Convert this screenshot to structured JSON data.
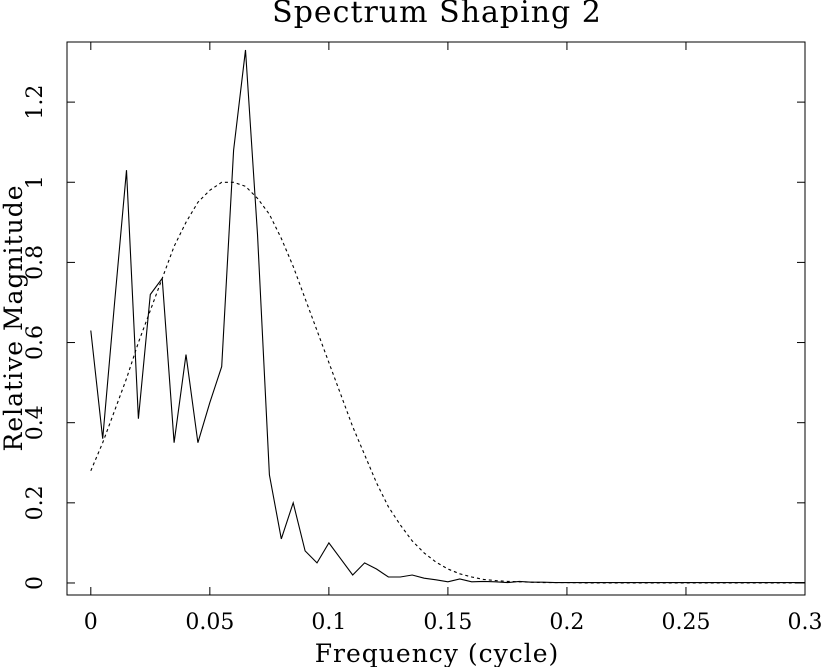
{
  "chart_data": {
    "type": "line",
    "title": "Spectrum Shaping 2",
    "xlabel": "Frequency (cycle)",
    "ylabel": "Relative Magnitude",
    "xlim": [
      -0.01,
      0.3
    ],
    "ylim": [
      -0.03,
      1.35
    ],
    "x_ticks": [
      0,
      0.05,
      0.1,
      0.15,
      0.2,
      0.25,
      0.3
    ],
    "x_tick_labels": [
      "0",
      "0.05",
      "0.1",
      "0.15",
      "0.2",
      "0.25",
      "0.3"
    ],
    "y_ticks": [
      0,
      0.2,
      0.4,
      0.6,
      0.8,
      1,
      1.2
    ],
    "y_tick_labels": [
      "0",
      "0.2",
      "0.4",
      "0.6",
      "0.8",
      "1",
      "1.2"
    ],
    "grid": false,
    "series": [
      {
        "style": "solid",
        "x": [
          0,
          0.005,
          0.01,
          0.015,
          0.02,
          0.025,
          0.03,
          0.035,
          0.04,
          0.045,
          0.05,
          0.055,
          0.06,
          0.065,
          0.07,
          0.075,
          0.08,
          0.085,
          0.09,
          0.095,
          0.1,
          0.105,
          0.11,
          0.115,
          0.12,
          0.125,
          0.13,
          0.135,
          0.14,
          0.145,
          0.15,
          0.155,
          0.16,
          0.165,
          0.17,
          0.175,
          0.18,
          0.185,
          0.19,
          0.195,
          0.2,
          0.25,
          0.3
        ],
        "y": [
          0.63,
          0.36,
          0.7,
          1.03,
          0.41,
          0.72,
          0.76,
          0.35,
          0.57,
          0.35,
          0.45,
          0.54,
          1.08,
          1.33,
          0.87,
          0.27,
          0.11,
          0.2,
          0.08,
          0.05,
          0.1,
          0.06,
          0.02,
          0.05,
          0.035,
          0.015,
          0.015,
          0.02,
          0.012,
          0.008,
          0.003,
          0.01,
          0.003,
          0.004,
          0.003,
          0.001,
          0.004,
          0.002,
          0.002,
          0.001,
          0.001,
          0.001,
          0.001
        ]
      },
      {
        "style": "dashed",
        "x": [
          0,
          0.005,
          0.01,
          0.015,
          0.02,
          0.025,
          0.03,
          0.035,
          0.04,
          0.045,
          0.05,
          0.055,
          0.06,
          0.065,
          0.07,
          0.075,
          0.08,
          0.085,
          0.09,
          0.095,
          0.1,
          0.105,
          0.11,
          0.115,
          0.12,
          0.125,
          0.13,
          0.135,
          0.14,
          0.145,
          0.15,
          0.155,
          0.16,
          0.165,
          0.17,
          0.175,
          0.18,
          0.185,
          0.19,
          0.195,
          0.2,
          0.21,
          0.22,
          0.23,
          0.24,
          0.25,
          0.26,
          0.27,
          0.28,
          0.29,
          0.3
        ],
        "y": [
          0.28,
          0.35,
          0.43,
          0.51,
          0.6,
          0.68,
          0.76,
          0.84,
          0.9,
          0.95,
          0.98,
          1.0,
          1.0,
          0.99,
          0.96,
          0.92,
          0.86,
          0.79,
          0.71,
          0.63,
          0.55,
          0.47,
          0.39,
          0.32,
          0.25,
          0.19,
          0.145,
          0.105,
          0.075,
          0.052,
          0.035,
          0.023,
          0.015,
          0.009,
          0.006,
          0.004,
          0.003,
          0.002,
          0.001,
          0.001,
          0.001,
          0,
          0,
          0,
          0,
          0,
          0,
          0,
          0,
          0,
          0
        ]
      }
    ]
  }
}
